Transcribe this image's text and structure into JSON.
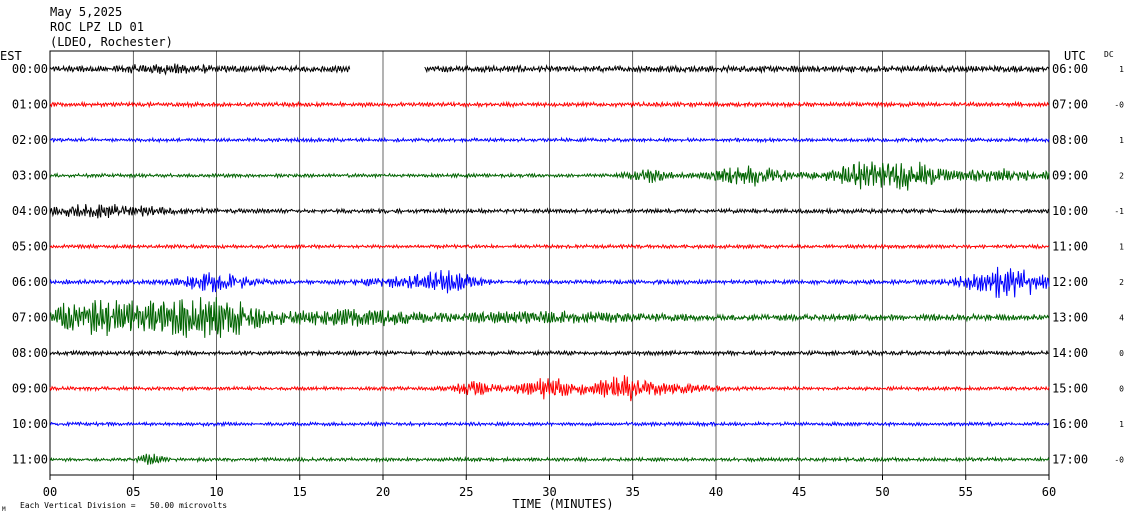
{
  "header": {
    "date": "May 5,2025",
    "station": "ROC LPZ LD 01",
    "network": "(LDEO, Rochester)"
  },
  "footer": {
    "scale_note": "Each Vertical Division =   50.00 microvolts",
    "corner_mark": "M"
  },
  "chart_data": {
    "type": "line",
    "title": "",
    "xlabel": "TIME (MINUTES)",
    "left_axis_label": "EST",
    "right_axis_label": "UTC",
    "dc_label": "DC",
    "xlim": [
      0,
      60
    ],
    "x_ticks": [
      "00",
      "05",
      "10",
      "15",
      "20",
      "25",
      "30",
      "35",
      "40",
      "45",
      "50",
      "55",
      "60"
    ],
    "rows": [
      {
        "est": "00:00",
        "utc": "06:00",
        "dc": "1",
        "color": "#000000",
        "base_amp": 0.18,
        "gaps": [
          [
            18,
            22.5
          ]
        ],
        "bursts": [
          {
            "t": 7,
            "w": 2.5,
            "a": 0.15
          }
        ]
      },
      {
        "est": "01:00",
        "utc": "07:00",
        "dc": "-0",
        "color": "#ff0000",
        "base_amp": 0.12,
        "gaps": [],
        "bursts": []
      },
      {
        "est": "02:00",
        "utc": "08:00",
        "dc": "1",
        "color": "#0000ff",
        "base_amp": 0.1,
        "gaps": [],
        "bursts": []
      },
      {
        "est": "03:00",
        "utc": "09:00",
        "dc": "2",
        "color": "#006400",
        "base_amp": 0.1,
        "gaps": [],
        "bursts": [
          {
            "t": 36,
            "w": 1.2,
            "a": 0.35
          },
          {
            "t": 42,
            "w": 2.2,
            "a": 0.55
          },
          {
            "t": 49,
            "w": 2.2,
            "a": 0.75
          },
          {
            "t": 52,
            "w": 1.5,
            "a": 0.6
          },
          {
            "t": 57,
            "w": 3,
            "a": 0.3
          }
        ]
      },
      {
        "est": "04:00",
        "utc": "10:00",
        "dc": "-1",
        "color": "#000000",
        "base_amp": 0.12,
        "gaps": [],
        "bursts": [
          {
            "t": 3,
            "w": 4,
            "a": 0.3
          }
        ]
      },
      {
        "est": "05:00",
        "utc": "11:00",
        "dc": "1",
        "color": "#ff0000",
        "base_amp": 0.1,
        "gaps": [],
        "bursts": []
      },
      {
        "est": "06:00",
        "utc": "12:00",
        "dc": "2",
        "color": "#0000ff",
        "base_amp": 0.12,
        "gaps": [],
        "bursts": [
          {
            "t": 10,
            "w": 2,
            "a": 0.5
          },
          {
            "t": 22,
            "w": 3,
            "a": 0.3
          },
          {
            "t": 24,
            "w": 1.5,
            "a": 0.35
          },
          {
            "t": 57.5,
            "w": 2.5,
            "a": 0.8
          }
        ]
      },
      {
        "est": "07:00",
        "utc": "13:00",
        "dc": "4",
        "color": "#006400",
        "base_amp": 0.18,
        "gaps": [],
        "bursts": [
          {
            "t": 4,
            "w": 5,
            "a": 0.9
          },
          {
            "t": 10,
            "w": 2.5,
            "a": 0.95
          },
          {
            "t": 18,
            "w": 4,
            "a": 0.35
          },
          {
            "t": 30,
            "w": 6,
            "a": 0.2
          }
        ]
      },
      {
        "est": "08:00",
        "utc": "14:00",
        "dc": "0",
        "color": "#000000",
        "base_amp": 0.12,
        "gaps": [],
        "bursts": []
      },
      {
        "est": "09:00",
        "utc": "15:00",
        "dc": "0",
        "color": "#ff0000",
        "base_amp": 0.1,
        "gaps": [],
        "bursts": [
          {
            "t": 25.5,
            "w": 1.2,
            "a": 0.35
          },
          {
            "t": 30,
            "w": 1.8,
            "a": 0.55
          },
          {
            "t": 34.5,
            "w": 1.8,
            "a": 0.65
          },
          {
            "t": 38,
            "w": 2,
            "a": 0.2
          }
        ]
      },
      {
        "est": "10:00",
        "utc": "16:00",
        "dc": "1",
        "color": "#0000ff",
        "base_amp": 0.1,
        "gaps": [],
        "bursts": []
      },
      {
        "est": "11:00",
        "utc": "17:00",
        "dc": "-0",
        "color": "#006400",
        "base_amp": 0.1,
        "gaps": [],
        "bursts": [
          {
            "t": 6,
            "w": 0.7,
            "a": 0.25
          }
        ]
      }
    ]
  }
}
